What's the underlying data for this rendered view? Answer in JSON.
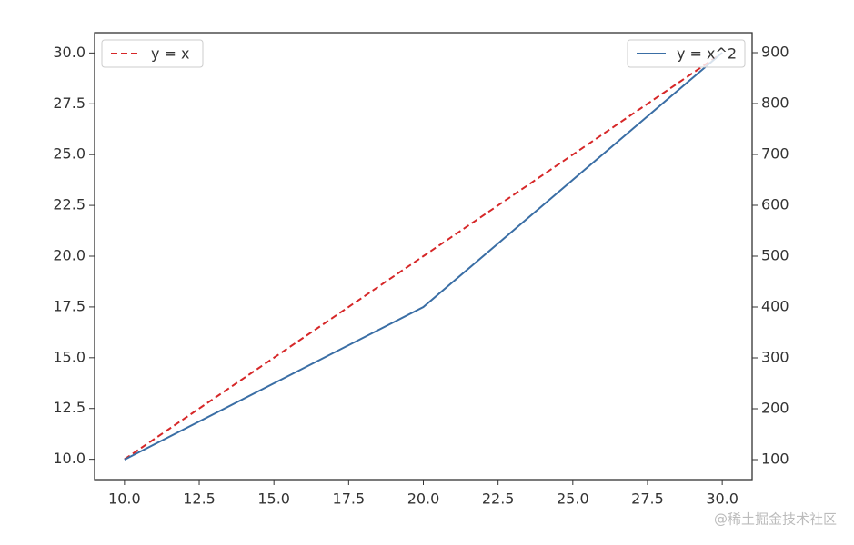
{
  "chart_data": {
    "type": "line",
    "x": [
      10,
      20,
      30
    ],
    "series": [
      {
        "name": "y = x",
        "color": "#d62728",
        "linestyle": "dashed",
        "values": [
          10,
          20,
          30
        ],
        "legend_loc": "upper left"
      },
      {
        "name": "y = x^2",
        "color": "#3a6ea5",
        "linestyle": "solid",
        "axis": "y2",
        "values": [
          100,
          400,
          900
        ],
        "legend_loc": "upper right"
      }
    ],
    "xlim": [
      9,
      31
    ],
    "xticks": [
      {
        "value": 10,
        "label": "10.0"
      },
      {
        "value": 12.5,
        "label": "12.5"
      },
      {
        "value": 15,
        "label": "15.0"
      },
      {
        "value": 17.5,
        "label": "17.5"
      },
      {
        "value": 20,
        "label": "20.0"
      },
      {
        "value": 22.5,
        "label": "22.5"
      },
      {
        "value": 25,
        "label": "25.0"
      },
      {
        "value": 27.5,
        "label": "27.5"
      },
      {
        "value": 30,
        "label": "30.0"
      }
    ],
    "ylim": [
      9,
      31
    ],
    "yticks": [
      {
        "value": 10,
        "label": "10.0"
      },
      {
        "value": 12.5,
        "label": "12.5"
      },
      {
        "value": 15,
        "label": "15.0"
      },
      {
        "value": 17.5,
        "label": "17.5"
      },
      {
        "value": 20,
        "label": "20.0"
      },
      {
        "value": 22.5,
        "label": "22.5"
      },
      {
        "value": 25,
        "label": "25.0"
      },
      {
        "value": 27.5,
        "label": "27.5"
      },
      {
        "value": 30,
        "label": "30.0"
      }
    ],
    "y2lim": [
      60.7,
      939.3
    ],
    "y2ticks": [
      100,
      200,
      300,
      400,
      500,
      600,
      700,
      800,
      900
    ],
    "watermark": "@稀土掘金技术社区"
  }
}
